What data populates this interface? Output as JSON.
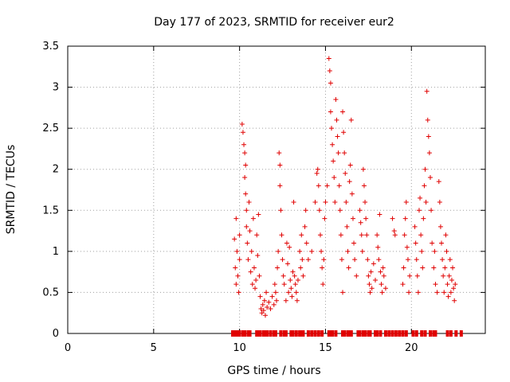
{
  "chart_data": {
    "type": "scatter",
    "title": "Day 177 of 2023, SRMTID for receiver eur2",
    "xlabel": "GPS time / hours",
    "ylabel": "SRMTID / TECUs",
    "xlim": [
      0,
      24.3
    ],
    "ylim": [
      0,
      3.5
    ],
    "xticks": [
      0,
      5,
      10,
      15,
      20
    ],
    "xtick_labels": [
      "0",
      "5",
      "10",
      "15",
      "20"
    ],
    "yticks": [
      0,
      0.5,
      1,
      1.5,
      2,
      2.5,
      3,
      3.5
    ],
    "ytick_labels": [
      "0",
      "0.5",
      "1",
      "1.5",
      "2",
      "2.5",
      "3",
      "3.5"
    ],
    "grid": true,
    "marker": "+",
    "color": "#e00000",
    "series": [
      {
        "name": "SRMTID",
        "points": [
          [
            9.7,
            1.15
          ],
          [
            9.75,
            0.8
          ],
          [
            9.8,
            0.6
          ],
          [
            9.8,
            1.4
          ],
          [
            9.85,
            1.0
          ],
          [
            9.9,
            0.7
          ],
          [
            9.95,
            0.5
          ],
          [
            10.0,
            1.2
          ],
          [
            10.0,
            0.9
          ],
          [
            10.15,
            2.55
          ],
          [
            10.2,
            2.45
          ],
          [
            10.25,
            2.3
          ],
          [
            10.3,
            2.2
          ],
          [
            10.3,
            1.9
          ],
          [
            10.35,
            1.7
          ],
          [
            10.35,
            2.05
          ],
          [
            10.4,
            1.5
          ],
          [
            10.4,
            1.3
          ],
          [
            10.45,
            1.1
          ],
          [
            10.5,
            0.9
          ],
          [
            10.55,
            1.6
          ],
          [
            10.6,
            1.25
          ],
          [
            10.65,
            0.75
          ],
          [
            10.7,
            1.0
          ],
          [
            10.75,
            0.6
          ],
          [
            10.8,
            1.4
          ],
          [
            10.85,
            0.8
          ],
          [
            10.9,
            0.55
          ],
          [
            10.95,
            0.65
          ],
          [
            11.0,
            1.2
          ],
          [
            11.05,
            0.95
          ],
          [
            11.1,
            1.45
          ],
          [
            11.15,
            0.7
          ],
          [
            11.2,
            0.45
          ],
          [
            11.25,
            0.3
          ],
          [
            11.3,
            0.25
          ],
          [
            11.35,
            0.35
          ],
          [
            11.4,
            0.28
          ],
          [
            11.45,
            0.4
          ],
          [
            11.5,
            0.22
          ],
          [
            11.55,
            0.5
          ],
          [
            11.6,
            0.32
          ],
          [
            11.7,
            0.38
          ],
          [
            11.8,
            0.3
          ],
          [
            11.9,
            0.45
          ],
          [
            12.0,
            0.35
          ],
          [
            12.05,
            0.6
          ],
          [
            12.1,
            0.5
          ],
          [
            12.15,
            0.4
          ],
          [
            12.2,
            0.8
          ],
          [
            12.25,
            1.0
          ],
          [
            12.3,
            2.2
          ],
          [
            12.35,
            2.05
          ],
          [
            12.35,
            1.8
          ],
          [
            12.4,
            1.5
          ],
          [
            12.45,
            1.2
          ],
          [
            12.5,
            0.9
          ],
          [
            12.55,
            0.7
          ],
          [
            12.6,
            0.6
          ],
          [
            12.7,
            0.4
          ],
          [
            12.75,
            1.1
          ],
          [
            12.8,
            0.85
          ],
          [
            12.85,
            0.5
          ],
          [
            12.9,
            1.05
          ],
          [
            12.95,
            0.65
          ],
          [
            13.0,
            0.55
          ],
          [
            13.05,
            0.45
          ],
          [
            13.1,
            0.75
          ],
          [
            13.15,
            1.6
          ],
          [
            13.2,
            0.7
          ],
          [
            13.25,
            0.6
          ],
          [
            13.3,
            0.5
          ],
          [
            13.35,
            0.4
          ],
          [
            13.4,
            0.65
          ],
          [
            13.5,
            1.0
          ],
          [
            13.55,
            0.8
          ],
          [
            13.6,
            1.2
          ],
          [
            13.65,
            0.9
          ],
          [
            13.7,
            0.7
          ],
          [
            13.8,
            1.3
          ],
          [
            13.85,
            1.5
          ],
          [
            13.9,
            1.1
          ],
          [
            14.0,
            0.9
          ],
          [
            14.2,
            1.0
          ],
          [
            14.4,
            1.6
          ],
          [
            14.5,
            1.95
          ],
          [
            14.55,
            2.0
          ],
          [
            14.6,
            1.8
          ],
          [
            14.65,
            1.5
          ],
          [
            14.7,
            1.2
          ],
          [
            14.75,
            1.0
          ],
          [
            14.8,
            0.8
          ],
          [
            14.85,
            0.6
          ],
          [
            14.9,
            0.9
          ],
          [
            14.95,
            1.4
          ],
          [
            15.0,
            1.6
          ],
          [
            15.1,
            1.8
          ],
          [
            15.2,
            3.35
          ],
          [
            15.25,
            3.2
          ],
          [
            15.3,
            3.05
          ],
          [
            15.3,
            2.7
          ],
          [
            15.35,
            2.5
          ],
          [
            15.4,
            2.3
          ],
          [
            15.45,
            2.1
          ],
          [
            15.5,
            1.9
          ],
          [
            15.55,
            1.6
          ],
          [
            15.6,
            2.85
          ],
          [
            15.65,
            2.6
          ],
          [
            15.7,
            2.4
          ],
          [
            15.75,
            2.2
          ],
          [
            15.8,
            1.8
          ],
          [
            15.85,
            1.5
          ],
          [
            15.9,
            1.2
          ],
          [
            15.95,
            0.9
          ],
          [
            16.0,
            0.5
          ],
          [
            16.0,
            2.7
          ],
          [
            16.05,
            2.45
          ],
          [
            16.1,
            2.2
          ],
          [
            16.15,
            1.95
          ],
          [
            16.2,
            1.6
          ],
          [
            16.25,
            1.3
          ],
          [
            16.3,
            1.0
          ],
          [
            16.35,
            0.8
          ],
          [
            16.4,
            1.85
          ],
          [
            16.45,
            2.05
          ],
          [
            16.5,
            2.6
          ],
          [
            16.55,
            1.7
          ],
          [
            16.6,
            1.4
          ],
          [
            16.65,
            1.1
          ],
          [
            16.7,
            0.9
          ],
          [
            16.8,
            0.7
          ],
          [
            17.0,
            1.5
          ],
          [
            17.05,
            1.35
          ],
          [
            17.1,
            1.2
          ],
          [
            17.15,
            1.0
          ],
          [
            17.2,
            2.0
          ],
          [
            17.25,
            1.8
          ],
          [
            17.3,
            1.6
          ],
          [
            17.35,
            1.4
          ],
          [
            17.4,
            1.2
          ],
          [
            17.45,
            0.9
          ],
          [
            17.5,
            0.7
          ],
          [
            17.55,
            0.6
          ],
          [
            17.6,
            0.5
          ],
          [
            17.65,
            0.75
          ],
          [
            17.7,
            0.55
          ],
          [
            17.8,
            0.85
          ],
          [
            17.9,
            0.65
          ],
          [
            18.0,
            1.2
          ],
          [
            18.05,
            1.05
          ],
          [
            18.1,
            0.9
          ],
          [
            18.15,
            1.45
          ],
          [
            18.2,
            0.75
          ],
          [
            18.25,
            0.6
          ],
          [
            18.3,
            0.5
          ],
          [
            18.35,
            0.8
          ],
          [
            18.4,
            0.7
          ],
          [
            18.5,
            0.55
          ],
          [
            18.9,
            1.4
          ],
          [
            19.0,
            1.25
          ],
          [
            19.05,
            1.2
          ],
          [
            19.5,
            0.6
          ],
          [
            19.55,
            0.8
          ],
          [
            19.6,
            1.2
          ],
          [
            19.65,
            1.4
          ],
          [
            19.7,
            1.6
          ],
          [
            19.75,
            1.05
          ],
          [
            19.8,
            0.9
          ],
          [
            19.85,
            0.5
          ],
          [
            19.9,
            0.7
          ],
          [
            20.2,
            1.3
          ],
          [
            20.25,
            1.1
          ],
          [
            20.3,
            0.9
          ],
          [
            20.35,
            0.7
          ],
          [
            20.4,
            0.5
          ],
          [
            20.45,
            1.5
          ],
          [
            20.5,
            1.65
          ],
          [
            20.55,
            1.2
          ],
          [
            20.6,
            1.0
          ],
          [
            20.65,
            0.8
          ],
          [
            20.7,
            1.4
          ],
          [
            20.75,
            1.8
          ],
          [
            20.8,
            2.0
          ],
          [
            20.85,
            1.6
          ],
          [
            20.9,
            2.95
          ],
          [
            20.95,
            2.6
          ],
          [
            21.0,
            2.4
          ],
          [
            21.05,
            2.2
          ],
          [
            21.1,
            1.9
          ],
          [
            21.15,
            1.5
          ],
          [
            21.2,
            1.1
          ],
          [
            21.3,
            0.8
          ],
          [
            21.35,
            1.0
          ],
          [
            21.4,
            0.6
          ],
          [
            21.5,
            0.5
          ],
          [
            21.6,
            1.85
          ],
          [
            21.65,
            1.6
          ],
          [
            21.7,
            1.3
          ],
          [
            21.75,
            1.1
          ],
          [
            21.8,
            0.9
          ],
          [
            21.85,
            0.7
          ],
          [
            21.9,
            0.5
          ],
          [
            21.95,
            0.8
          ],
          [
            22.0,
            1.2
          ],
          [
            22.05,
            1.0
          ],
          [
            22.1,
            0.6
          ],
          [
            22.15,
            0.45
          ],
          [
            22.2,
            0.7
          ],
          [
            22.25,
            0.9
          ],
          [
            22.3,
            0.5
          ],
          [
            22.35,
            0.65
          ],
          [
            22.4,
            0.8
          ],
          [
            22.45,
            0.55
          ],
          [
            22.5,
            0.4
          ],
          [
            22.55,
            0.6
          ]
        ]
      }
    ],
    "zero_markers_x": [
      9.6,
      9.7,
      9.8,
      9.95,
      10.0,
      10.2,
      10.3,
      10.5,
      10.6,
      11.0,
      11.1,
      11.2,
      11.4,
      11.5,
      11.6,
      11.8,
      12.0,
      12.1,
      12.4,
      12.6,
      12.7,
      13.0,
      13.1,
      13.3,
      13.5,
      13.6,
      13.7,
      14.0,
      14.2,
      14.4,
      14.6,
      14.8,
      15.2,
      15.3,
      15.4,
      15.6,
      16.0,
      16.1,
      16.3,
      16.4,
      16.5,
      16.9,
      17.0,
      17.2,
      17.3,
      17.5,
      17.6,
      17.9,
      18.0,
      18.2,
      18.5,
      18.7,
      18.9,
      19.1,
      19.3,
      19.5,
      19.7,
      20.1,
      20.3,
      20.6,
      20.8,
      21.1,
      21.3,
      21.4,
      22.1,
      22.3,
      22.6,
      22.9
    ]
  }
}
